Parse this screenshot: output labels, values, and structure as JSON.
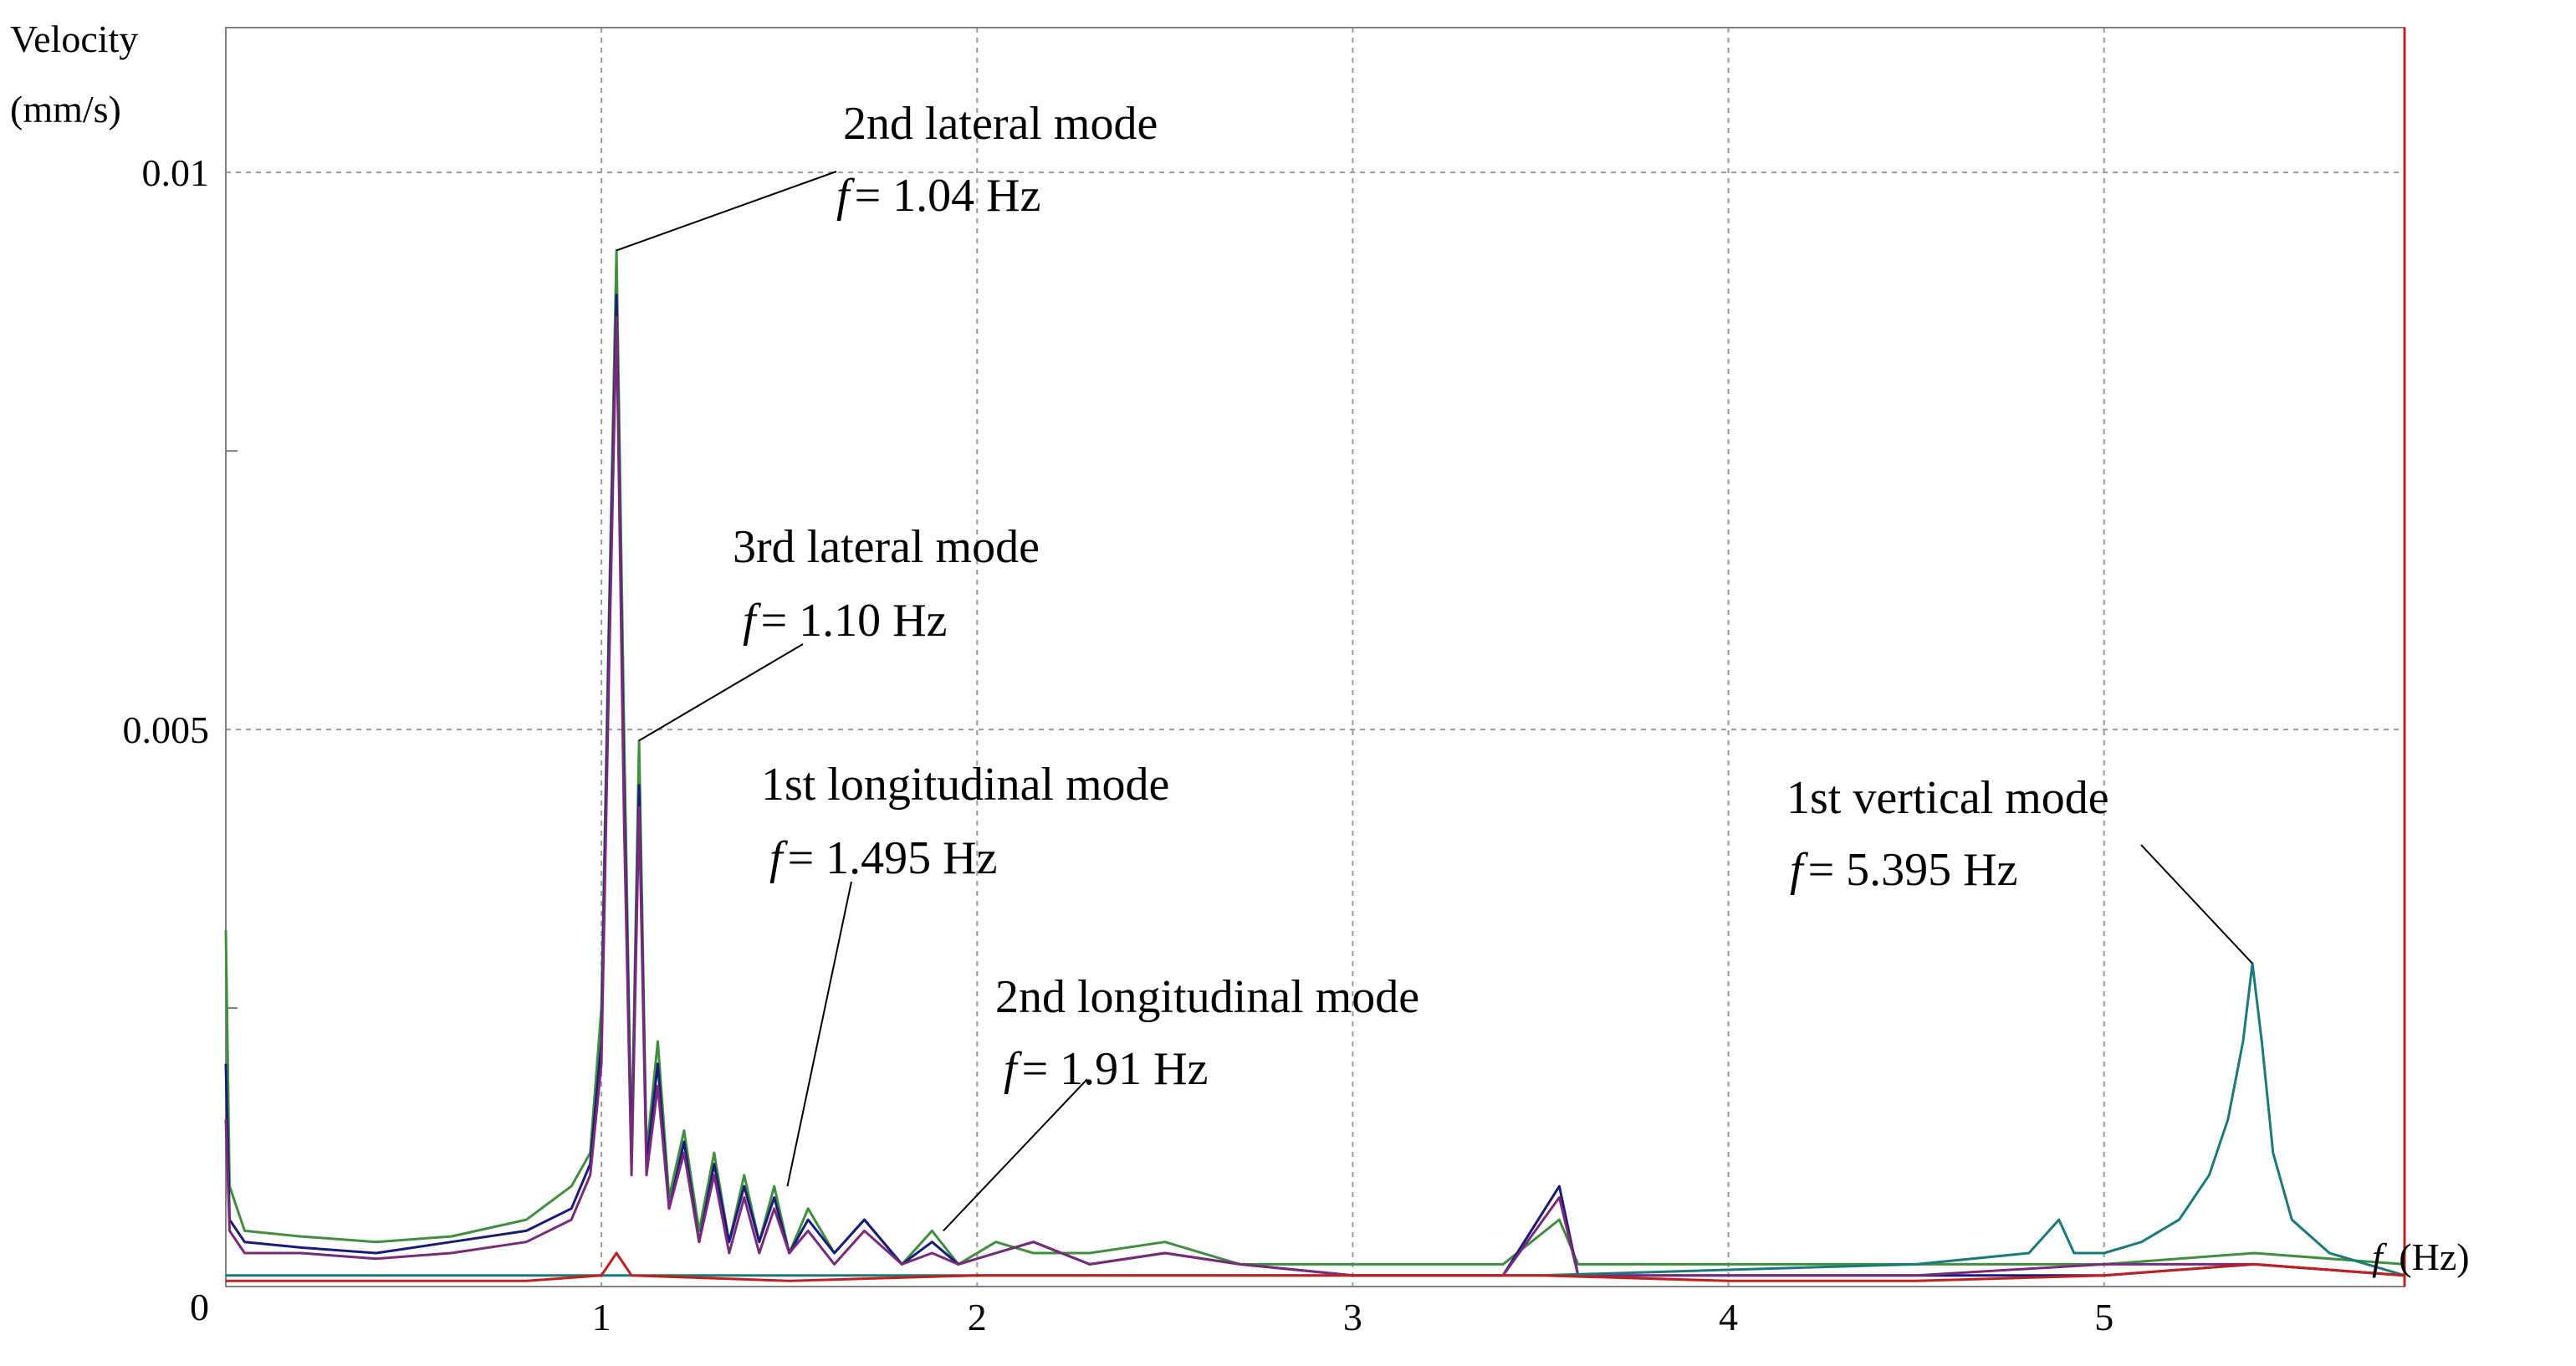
{
  "chart_data": {
    "type": "line",
    "title": "",
    "xlabel": "f (Hz)",
    "xlabel_symbol": "f",
    "xlabel_unit": "(Hz)",
    "ylabel_line1": "Velocity",
    "ylabel_line2": "(mm/s)",
    "xlim": [
      0,
      5.8
    ],
    "ylim": [
      0,
      0.0113
    ],
    "grid": true,
    "x_ticks": [
      1,
      2,
      3,
      4,
      5
    ],
    "x_tick_labels": [
      "1",
      "2",
      "3",
      "4",
      "5"
    ],
    "y_ticks": [
      0,
      0.005,
      0.01
    ],
    "y_tick_labels": [
      "0",
      "0.005",
      "0.01"
    ],
    "series": [
      {
        "name": "green",
        "color": "#3f8f3f",
        "points": [
          [
            0,
            0.0032
          ],
          [
            0.01,
            0.0009
          ],
          [
            0.05,
            0.0005
          ],
          [
            0.2,
            0.00045
          ],
          [
            0.4,
            0.0004
          ],
          [
            0.6,
            0.00045
          ],
          [
            0.8,
            0.0006
          ],
          [
            0.92,
            0.0009
          ],
          [
            0.97,
            0.0012
          ],
          [
            1.0,
            0.0025
          ],
          [
            1.02,
            0.006
          ],
          [
            1.04,
            0.0093
          ],
          [
            1.06,
            0.005
          ],
          [
            1.08,
            0.0012
          ],
          [
            1.1,
            0.0049
          ],
          [
            1.12,
            0.0012
          ],
          [
            1.15,
            0.0022
          ],
          [
            1.18,
            0.0008
          ],
          [
            1.22,
            0.0014
          ],
          [
            1.26,
            0.0005
          ],
          [
            1.3,
            0.0012
          ],
          [
            1.34,
            0.0004
          ],
          [
            1.38,
            0.001
          ],
          [
            1.42,
            0.0004
          ],
          [
            1.46,
            0.0009
          ],
          [
            1.5,
            0.0003
          ],
          [
            1.55,
            0.0007
          ],
          [
            1.62,
            0.0003
          ],
          [
            1.7,
            0.0006
          ],
          [
            1.8,
            0.0002
          ],
          [
            1.88,
            0.0005
          ],
          [
            1.95,
            0.0002
          ],
          [
            2.05,
            0.0004
          ],
          [
            2.15,
            0.0003
          ],
          [
            2.3,
            0.0003
          ],
          [
            2.5,
            0.0004
          ],
          [
            2.7,
            0.0002
          ],
          [
            3.0,
            0.0002
          ],
          [
            3.4,
            0.0002
          ],
          [
            3.55,
            0.0006
          ],
          [
            3.6,
            0.0002
          ],
          [
            4.0,
            0.0002
          ],
          [
            4.5,
            0.0002
          ],
          [
            5.0,
            0.0002
          ],
          [
            5.4,
            0.0003
          ],
          [
            5.8,
            0.0002
          ]
        ]
      },
      {
        "name": "navy",
        "color": "#1a1a7a",
        "points": [
          [
            0,
            0.002
          ],
          [
            0.01,
            0.0006
          ],
          [
            0.05,
            0.0004
          ],
          [
            0.2,
            0.00035
          ],
          [
            0.4,
            0.0003
          ],
          [
            0.6,
            0.0004
          ],
          [
            0.8,
            0.0005
          ],
          [
            0.92,
            0.0007
          ],
          [
            0.97,
            0.0011
          ],
          [
            1.0,
            0.0022
          ],
          [
            1.02,
            0.0058
          ],
          [
            1.04,
            0.0089
          ],
          [
            1.06,
            0.0045
          ],
          [
            1.08,
            0.0011
          ],
          [
            1.1,
            0.0045
          ],
          [
            1.12,
            0.0011
          ],
          [
            1.15,
            0.002
          ],
          [
            1.18,
            0.0007
          ],
          [
            1.22,
            0.0013
          ],
          [
            1.26,
            0.0004
          ],
          [
            1.3,
            0.0011
          ],
          [
            1.34,
            0.0004
          ],
          [
            1.38,
            0.0009
          ],
          [
            1.42,
            0.0004
          ],
          [
            1.46,
            0.0008
          ],
          [
            1.5,
            0.0003
          ],
          [
            1.55,
            0.0006
          ],
          [
            1.62,
            0.0003
          ],
          [
            1.7,
            0.0006
          ],
          [
            1.8,
            0.0002
          ],
          [
            1.88,
            0.0004
          ],
          [
            1.95,
            0.0002
          ],
          [
            2.05,
            0.0003
          ],
          [
            2.15,
            0.0004
          ],
          [
            2.3,
            0.0002
          ],
          [
            2.5,
            0.0003
          ],
          [
            2.7,
            0.0002
          ],
          [
            3.0,
            0.0001
          ],
          [
            3.4,
            0.0001
          ],
          [
            3.55,
            0.0009
          ],
          [
            3.6,
            0.0001
          ],
          [
            4.0,
            0.0001
          ],
          [
            4.5,
            0.0001
          ],
          [
            5.0,
            0.0001
          ],
          [
            5.4,
            0.0002
          ],
          [
            5.8,
            0.0001
          ]
        ]
      },
      {
        "name": "purple",
        "color": "#7a2a7a",
        "points": [
          [
            0,
            0.0015
          ],
          [
            0.01,
            0.0005
          ],
          [
            0.05,
            0.0003
          ],
          [
            0.2,
            0.0003
          ],
          [
            0.4,
            0.00025
          ],
          [
            0.6,
            0.0003
          ],
          [
            0.8,
            0.0004
          ],
          [
            0.92,
            0.0006
          ],
          [
            0.97,
            0.001
          ],
          [
            1.0,
            0.002
          ],
          [
            1.02,
            0.0055
          ],
          [
            1.04,
            0.0087
          ],
          [
            1.06,
            0.0042
          ],
          [
            1.08,
            0.001
          ],
          [
            1.1,
            0.0043
          ],
          [
            1.12,
            0.001
          ],
          [
            1.15,
            0.0018
          ],
          [
            1.18,
            0.0007
          ],
          [
            1.22,
            0.0012
          ],
          [
            1.26,
            0.0004
          ],
          [
            1.3,
            0.001
          ],
          [
            1.34,
            0.0003
          ],
          [
            1.38,
            0.0008
          ],
          [
            1.42,
            0.0003
          ],
          [
            1.46,
            0.0007
          ],
          [
            1.5,
            0.0003
          ],
          [
            1.55,
            0.0005
          ],
          [
            1.62,
            0.0002
          ],
          [
            1.7,
            0.0005
          ],
          [
            1.8,
            0.0002
          ],
          [
            1.88,
            0.0003
          ],
          [
            1.95,
            0.0002
          ],
          [
            2.05,
            0.0003
          ],
          [
            2.15,
            0.0004
          ],
          [
            2.3,
            0.0002
          ],
          [
            2.5,
            0.0003
          ],
          [
            2.7,
            0.0002
          ],
          [
            3.0,
            0.0001
          ],
          [
            3.4,
            0.0001
          ],
          [
            3.55,
            0.0008
          ],
          [
            3.6,
            0.0001
          ],
          [
            4.0,
            0.0001
          ],
          [
            4.5,
            0.0001
          ],
          [
            5.0,
            0.0002
          ],
          [
            5.4,
            0.0002
          ],
          [
            5.8,
            0.0001
          ]
        ]
      },
      {
        "name": "teal",
        "color": "#1a7a7a",
        "points": [
          [
            0,
            0.0001
          ],
          [
            0.2,
            0.0001
          ],
          [
            0.8,
            0.0001
          ],
          [
            1.2,
            0.0001
          ],
          [
            1.5,
            0.0001
          ],
          [
            2.0,
            0.0001
          ],
          [
            2.5,
            0.0001
          ],
          [
            3.0,
            0.0001
          ],
          [
            3.5,
            0.0001
          ],
          [
            4.0,
            0.00015
          ],
          [
            4.5,
            0.0002
          ],
          [
            4.8,
            0.0003
          ],
          [
            4.88,
            0.0006
          ],
          [
            4.92,
            0.0003
          ],
          [
            5.0,
            0.0003
          ],
          [
            5.1,
            0.0004
          ],
          [
            5.2,
            0.0006
          ],
          [
            5.28,
            0.001
          ],
          [
            5.33,
            0.0015
          ],
          [
            5.37,
            0.0022
          ],
          [
            5.395,
            0.0029
          ],
          [
            5.42,
            0.0022
          ],
          [
            5.45,
            0.0012
          ],
          [
            5.5,
            0.0006
          ],
          [
            5.6,
            0.0003
          ],
          [
            5.7,
            0.0002
          ],
          [
            5.8,
            0.0001
          ]
        ]
      },
      {
        "name": "red",
        "color": "#c02020",
        "points": [
          [
            0,
            5e-05
          ],
          [
            0.8,
            5e-05
          ],
          [
            1.0,
            0.0001
          ],
          [
            1.04,
            0.0003
          ],
          [
            1.08,
            0.0001
          ],
          [
            1.5,
            5e-05
          ],
          [
            2.0,
            0.0001
          ],
          [
            2.5,
            0.0001
          ],
          [
            3.0,
            0.0001
          ],
          [
            3.5,
            0.0001
          ],
          [
            4.0,
            5e-05
          ],
          [
            4.5,
            5e-05
          ],
          [
            5.0,
            0.0001
          ],
          [
            5.4,
            0.0002
          ],
          [
            5.8,
            0.0001
          ]
        ]
      }
    ],
    "annotations": [
      {
        "label": "2nd lateral mode",
        "symbol": "f",
        "value": "= 1.04 Hz",
        "x": 1.04,
        "y": 0.0093
      },
      {
        "label": "3rd lateral mode",
        "symbol": "f",
        "value": "= 1.10 Hz",
        "x": 1.1,
        "y": 0.0049
      },
      {
        "label": "1st longitudinal mode",
        "symbol": "f",
        "value": "= 1.495 Hz",
        "x": 1.495,
        "y": 0.0009
      },
      {
        "label": "2nd longitudinal mode",
        "symbol": "f",
        "value": "= 1.91 Hz",
        "x": 1.91,
        "y": 0.0005
      },
      {
        "label": "1st vertical mode",
        "symbol": "f",
        "value": "= 5.395 Hz",
        "x": 5.395,
        "y": 0.0029
      }
    ]
  }
}
